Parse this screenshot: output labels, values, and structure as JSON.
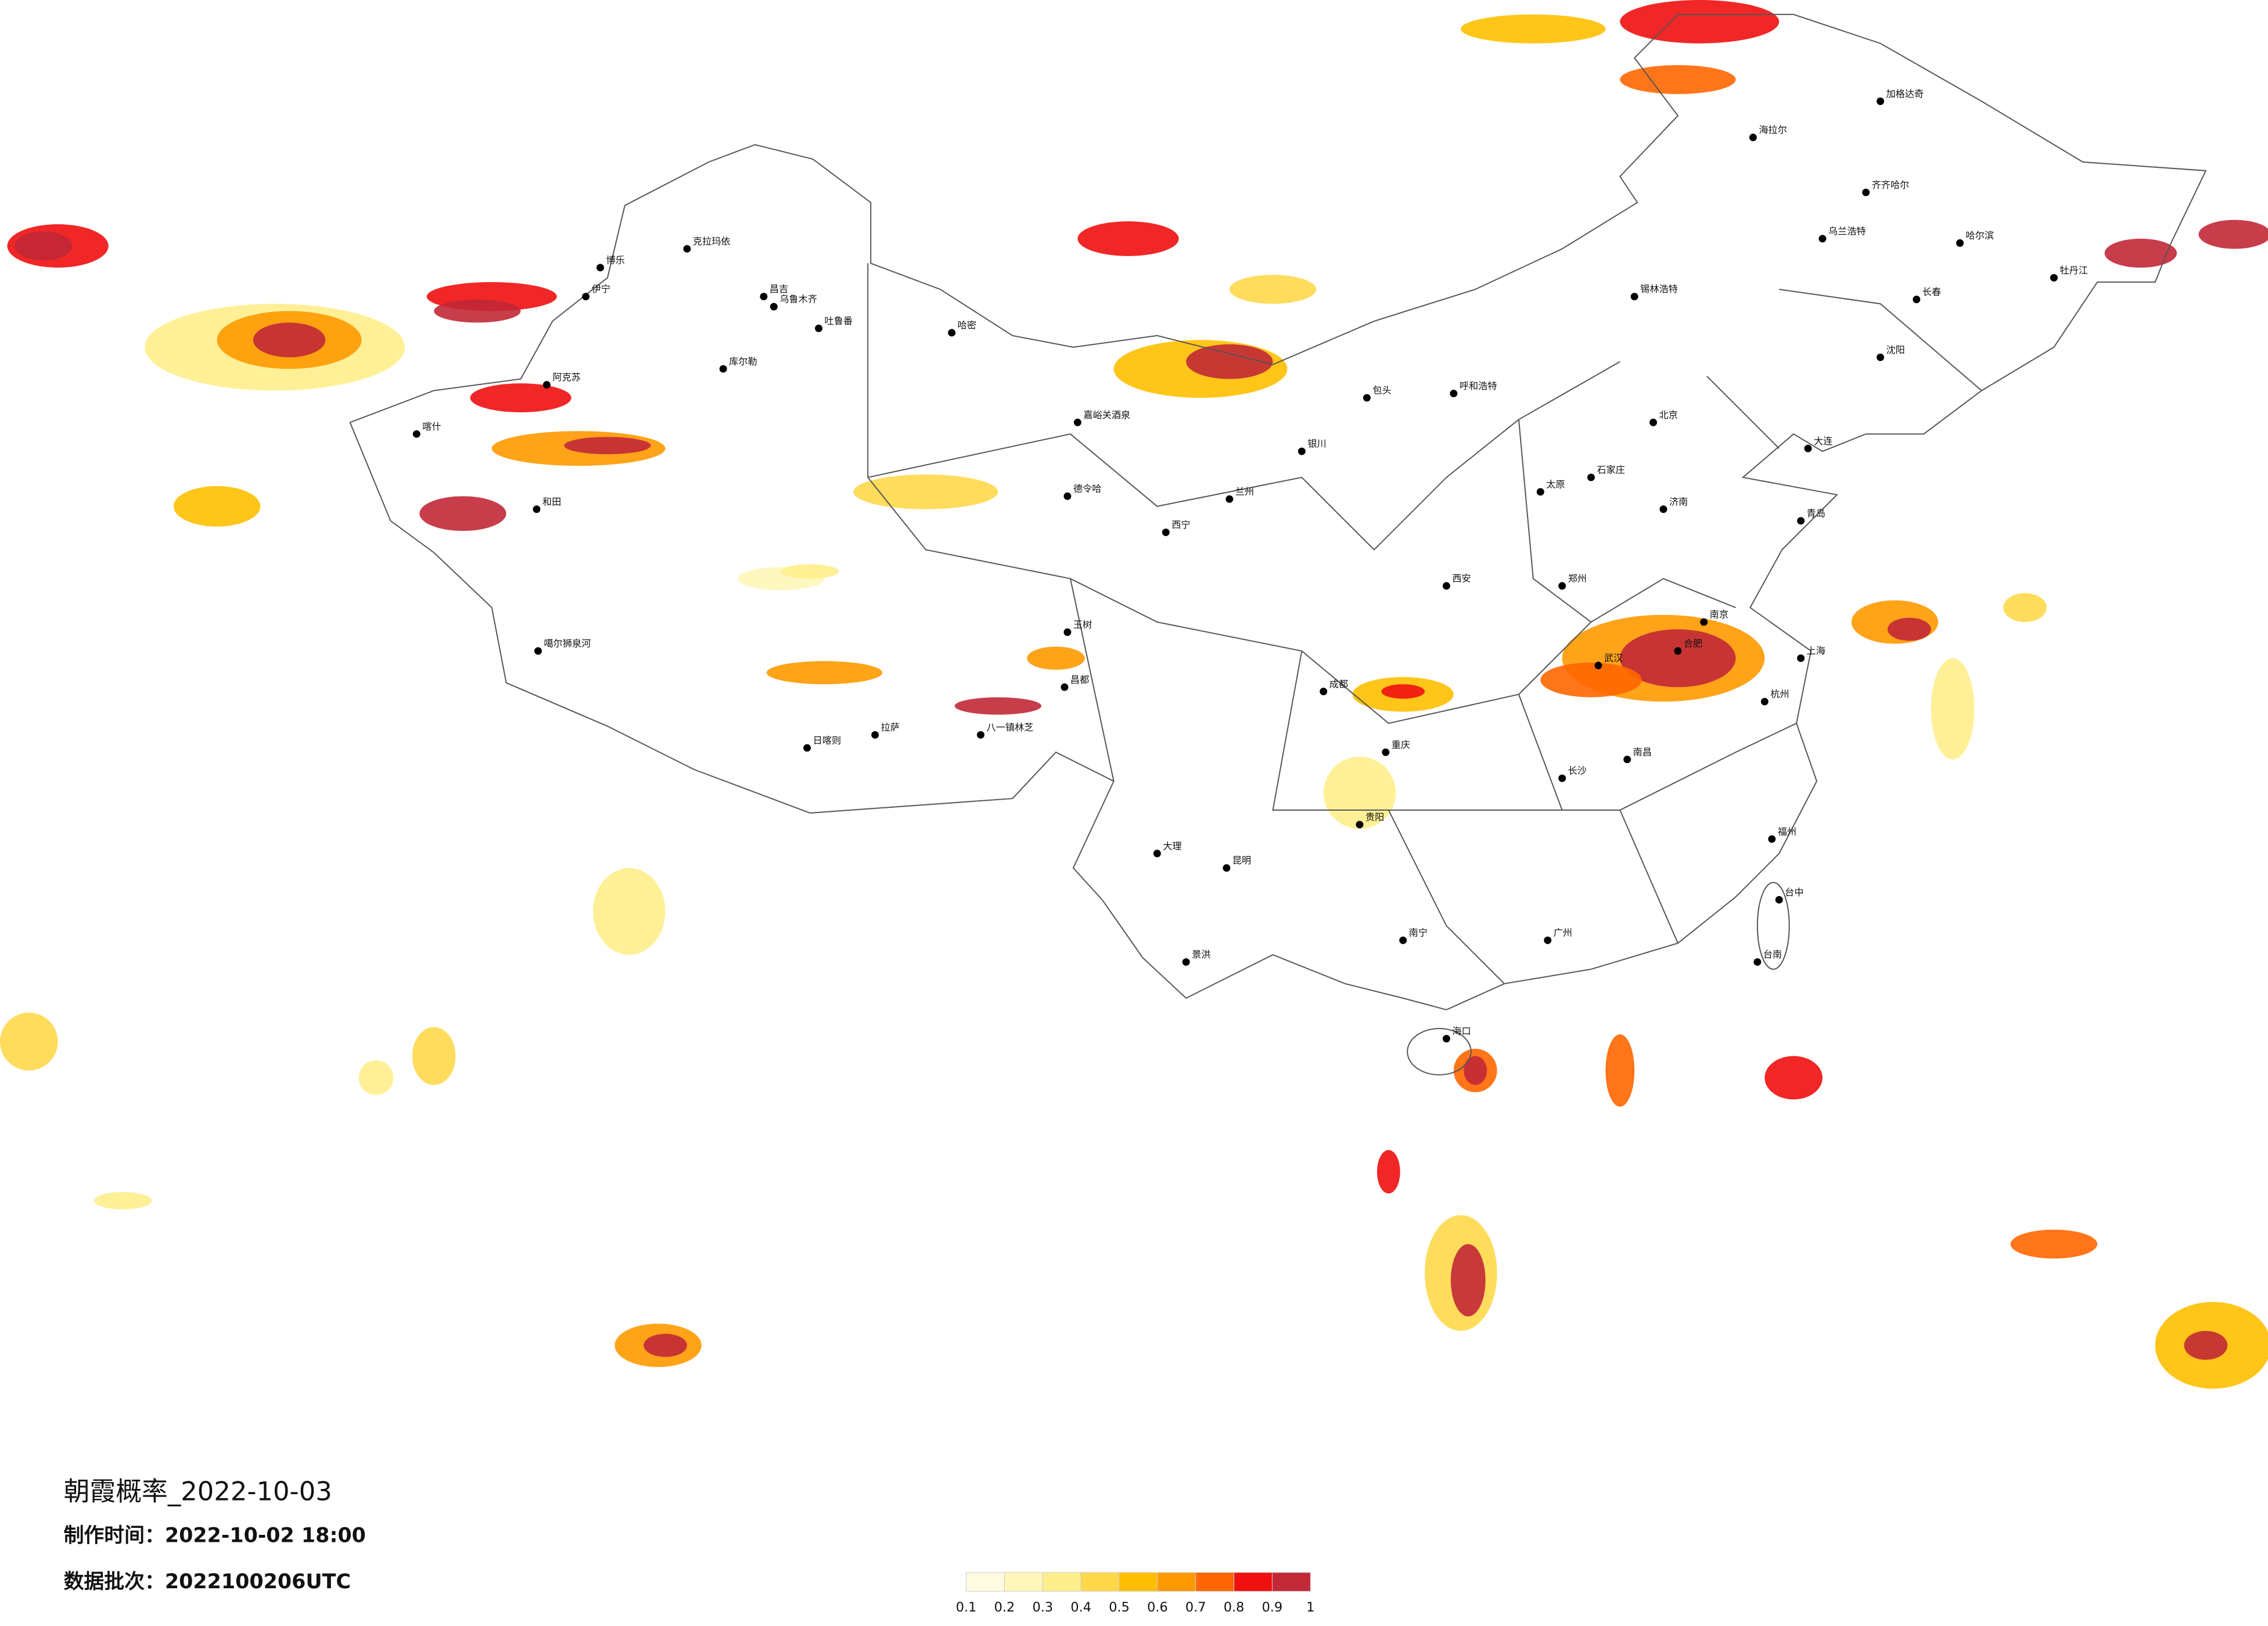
{
  "title": "朝霞概率_2022-10-03",
  "production_time": "制作时间：2022-10-02 18:00",
  "data_batch": "数据批次：2022100206UTC",
  "legend": {
    "ticks": [
      0.1,
      0.2,
      0.3,
      0.4,
      0.5,
      0.6,
      0.7,
      0.8,
      0.9,
      1
    ],
    "colors": [
      "#fffbe3",
      "#fff6b9",
      "#ffee8c",
      "#ffd84a",
      "#ffbf00",
      "#ff9900",
      "#ff6600",
      "#f01010",
      "#c22836"
    ]
  },
  "cities": [
    "克拉玛依",
    "昌吉",
    "乌鲁木齐",
    "吐鲁番",
    "哈密",
    "库尔勒",
    "阿克苏",
    "和田",
    "喀什",
    "伊宁",
    "博乐",
    "嘉峪关酒泉",
    "德令哈",
    "拉萨",
    "日喀则",
    "八一镇林芝",
    "昌都",
    "玉树",
    "噶尔狮泉河",
    "西宁",
    "兰州",
    "银川",
    "呼和浩特",
    "包头",
    "海拉尔",
    "加格达奇",
    "齐齐哈尔",
    "哈尔滨",
    "长春",
    "沈阳",
    "大连",
    "锡林浩特",
    "北京",
    "太原",
    "石家庄",
    "济南",
    "青岛",
    "郑州",
    "西安",
    "成都",
    "重庆",
    "武汉",
    "南京",
    "上海",
    "杭州",
    "合肥",
    "长沙",
    "南昌",
    "福州",
    "台中",
    "台南",
    "广州",
    "南宁",
    "海口",
    "贵阳",
    "昆明",
    "大理",
    "景洪",
    "乌兰浩特",
    "牡丹江"
  ]
}
